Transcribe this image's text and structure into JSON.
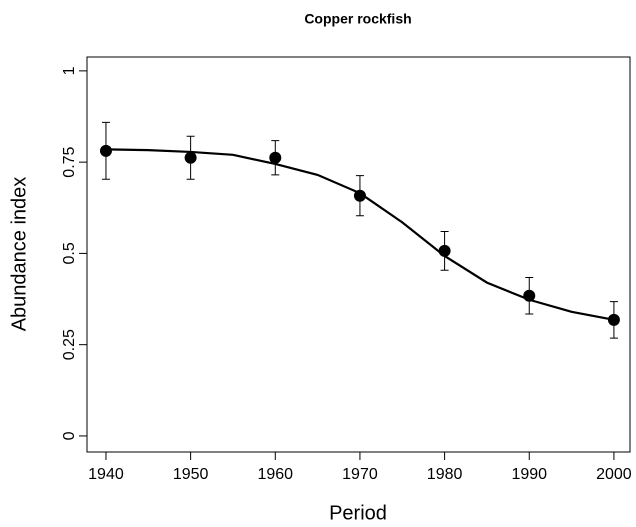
{
  "chart_data": {
    "type": "scatter",
    "title": "Copper rockfish",
    "xlabel": "Period",
    "ylabel": "Abundance index",
    "x": [
      1940,
      1950,
      1960,
      1970,
      1980,
      1990,
      2000
    ],
    "values": [
      0.781,
      0.762,
      0.762,
      0.658,
      0.507,
      0.384,
      0.318
    ],
    "errors": [
      0.078,
      0.059,
      0.047,
      0.055,
      0.053,
      0.05,
      0.05
    ],
    "color": "#000000",
    "curve": {
      "x": [
        1940,
        1945,
        1950,
        1955,
        1960,
        1965,
        1970,
        1975,
        1980,
        1985,
        1990,
        1995,
        2000
      ],
      "values": [
        0.785,
        0.783,
        0.778,
        0.77,
        0.745,
        0.715,
        0.665,
        0.585,
        0.493,
        0.42,
        0.373,
        0.34,
        0.318
      ]
    },
    "xlim": [
      1937.76,
      2001.9
    ],
    "ylim": [
      -0.044,
      1.038
    ],
    "xticks": [
      1940,
      1950,
      1960,
      1970,
      1980,
      1990,
      2000
    ],
    "yticks": [
      0,
      0.25,
      0.5,
      0.75,
      1
    ]
  }
}
